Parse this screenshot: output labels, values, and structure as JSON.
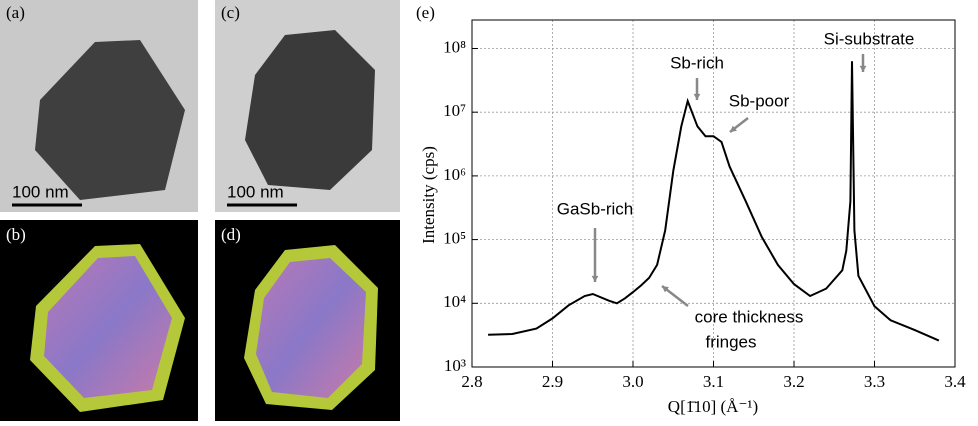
{
  "panels": [
    {
      "label": "(a)",
      "scale_bar": "100 nm"
    },
    {
      "label": "(b)"
    },
    {
      "label": "(c)",
      "scale_bar": "100 nm"
    },
    {
      "label": "(d)"
    }
  ],
  "chart_data": {
    "type": "line",
    "panel_label": "(e)",
    "xlabel": "Q[1̄10] (Å⁻¹)",
    "ylabel": "Intensity (cps)",
    "log_y": true,
    "grid": true,
    "xlim": [
      2.8,
      3.4
    ],
    "xticks": [
      2.8,
      2.9,
      {
        "value": 3,
        "label": "3.0"
      },
      3.1,
      3.2,
      3.3,
      3.4
    ],
    "ylim": [
      1000,
      280000000
    ],
    "yticks": [
      {
        "value": 1000,
        "label": "10³"
      },
      {
        "value": 10000,
        "label": "10⁴"
      },
      {
        "value": 100000,
        "label": "10⁵"
      },
      {
        "value": 1000000,
        "label": "10⁶"
      },
      {
        "value": 10000000,
        "label": "10⁷"
      },
      {
        "value": 100000000,
        "label": "10⁸"
      }
    ],
    "annotations": [
      "Sb-rich",
      "Sb-poor",
      "Si-substrate",
      "GaSb-rich",
      "core thickness",
      "fringes"
    ],
    "x": [
      2.82,
      2.85,
      2.88,
      2.9,
      2.92,
      2.94,
      2.95,
      2.97,
      2.98,
      2.99,
      3.0,
      3.01,
      3.02,
      3.03,
      3.04,
      3.05,
      3.06,
      3.068,
      3.08,
      3.09,
      3.1,
      3.11,
      3.12,
      3.14,
      3.16,
      3.18,
      3.2,
      3.22,
      3.24,
      3.26,
      3.265,
      3.27,
      3.272,
      3.275,
      3.28,
      3.3,
      3.32,
      3.35,
      3.38
    ],
    "series": [
      {
        "color": "#000000",
        "values": [
          3200,
          3300,
          4000,
          5800,
          9300,
          13000,
          14000,
          11000,
          10000,
          12000,
          15000,
          19000,
          25000,
          40000,
          140000,
          1200000,
          6000000,
          15000000,
          6000000,
          4200000,
          4200000,
          3400000,
          1400000,
          400000,
          110000,
          40000,
          20000,
          13000,
          17000,
          33000,
          67000,
          400000,
          63000000,
          140000,
          27000,
          9000,
          5400,
          3800,
          2600
        ]
      }
    ]
  }
}
